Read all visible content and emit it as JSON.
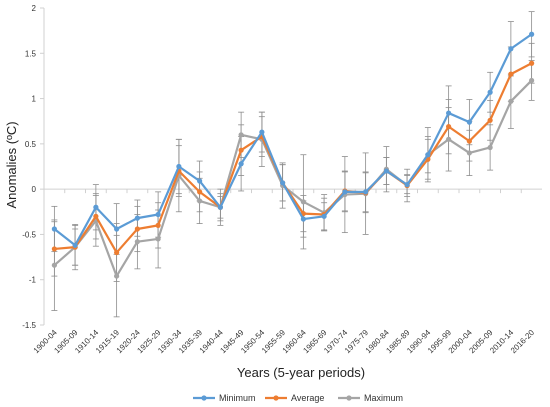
{
  "chart_data": {
    "type": "line",
    "title": "",
    "xlabel": "Years (5-year periods)",
    "ylabel": "Anomalies (ºC)",
    "ylim": [
      -1.5,
      2
    ],
    "yticks": [
      -1.5,
      -1,
      -0.5,
      0,
      0.5,
      1,
      1.5,
      2
    ],
    "grid": false,
    "legend_position": "bottom",
    "categories": [
      "1900-04",
      "1905-09",
      "1910-14",
      "1915-19",
      "1920-24",
      "1925-29",
      "1930-34",
      "1935-39",
      "1940-44",
      "1945-49",
      "1950-54",
      "1955-59",
      "1960-64",
      "1965-69",
      "1970-74",
      "1975-79",
      "1980-84",
      "1985-89",
      "1990-94",
      "1995-99",
      "2000-04",
      "2005-09",
      "2010-14",
      "2016-20"
    ],
    "series": [
      {
        "name": "Minimum",
        "color": "#5B9BD5",
        "values": [
          -0.44,
          -0.62,
          -0.2,
          -0.44,
          -0.32,
          -0.28,
          0.25,
          0.09,
          -0.2,
          0.28,
          0.63,
          0.07,
          -0.33,
          -0.3,
          -0.03,
          -0.03,
          0.2,
          0.05,
          0.38,
          0.84,
          0.74,
          1.07,
          1.55,
          1.71
        ],
        "err": [
          0.25,
          0.22,
          0.25,
          0.28,
          0.2,
          0.25,
          0.3,
          0.22,
          0.12,
          0.3,
          0.22,
          0.2,
          0.2,
          0.15,
          0.22,
          0.22,
          0.15,
          0.1,
          0.2,
          0.3,
          0.25,
          0.22,
          0.3,
          0.25
        ]
      },
      {
        "name": "Average",
        "color": "#ED7D31",
        "values": [
          -0.66,
          -0.64,
          -0.3,
          -0.7,
          -0.44,
          -0.4,
          0.2,
          -0.03,
          -0.2,
          0.43,
          0.58,
          0.07,
          -0.27,
          -0.28,
          -0.02,
          -0.04,
          0.2,
          0.04,
          0.33,
          0.69,
          0.53,
          0.76,
          1.27,
          1.39
        ],
        "err": [
          0.3,
          0.2,
          0.25,
          0.32,
          0.25,
          0.25,
          0.28,
          0.22,
          0.15,
          0.28,
          0.22,
          0.2,
          0.2,
          0.18,
          0.22,
          0.22,
          0.15,
          0.12,
          0.22,
          0.3,
          0.22,
          0.22,
          0.3,
          0.22
        ]
      },
      {
        "name": "Maximum",
        "color": "#A5A5A5",
        "values": [
          -0.84,
          -0.64,
          -0.35,
          -0.96,
          -0.58,
          -0.55,
          0.15,
          -0.13,
          -0.2,
          0.6,
          0.55,
          0.04,
          -0.14,
          -0.26,
          -0.06,
          -0.05,
          0.22,
          0.04,
          0.38,
          0.55,
          0.4,
          0.46,
          0.97,
          1.2
        ],
        "err": [
          0.5,
          0.25,
          0.28,
          0.45,
          0.3,
          0.32,
          0.4,
          0.25,
          0.2,
          0.25,
          0.3,
          0.25,
          0.52,
          0.2,
          0.42,
          0.45,
          0.25,
          0.18,
          0.3,
          0.35,
          0.25,
          0.25,
          0.3,
          0.22
        ]
      }
    ]
  }
}
